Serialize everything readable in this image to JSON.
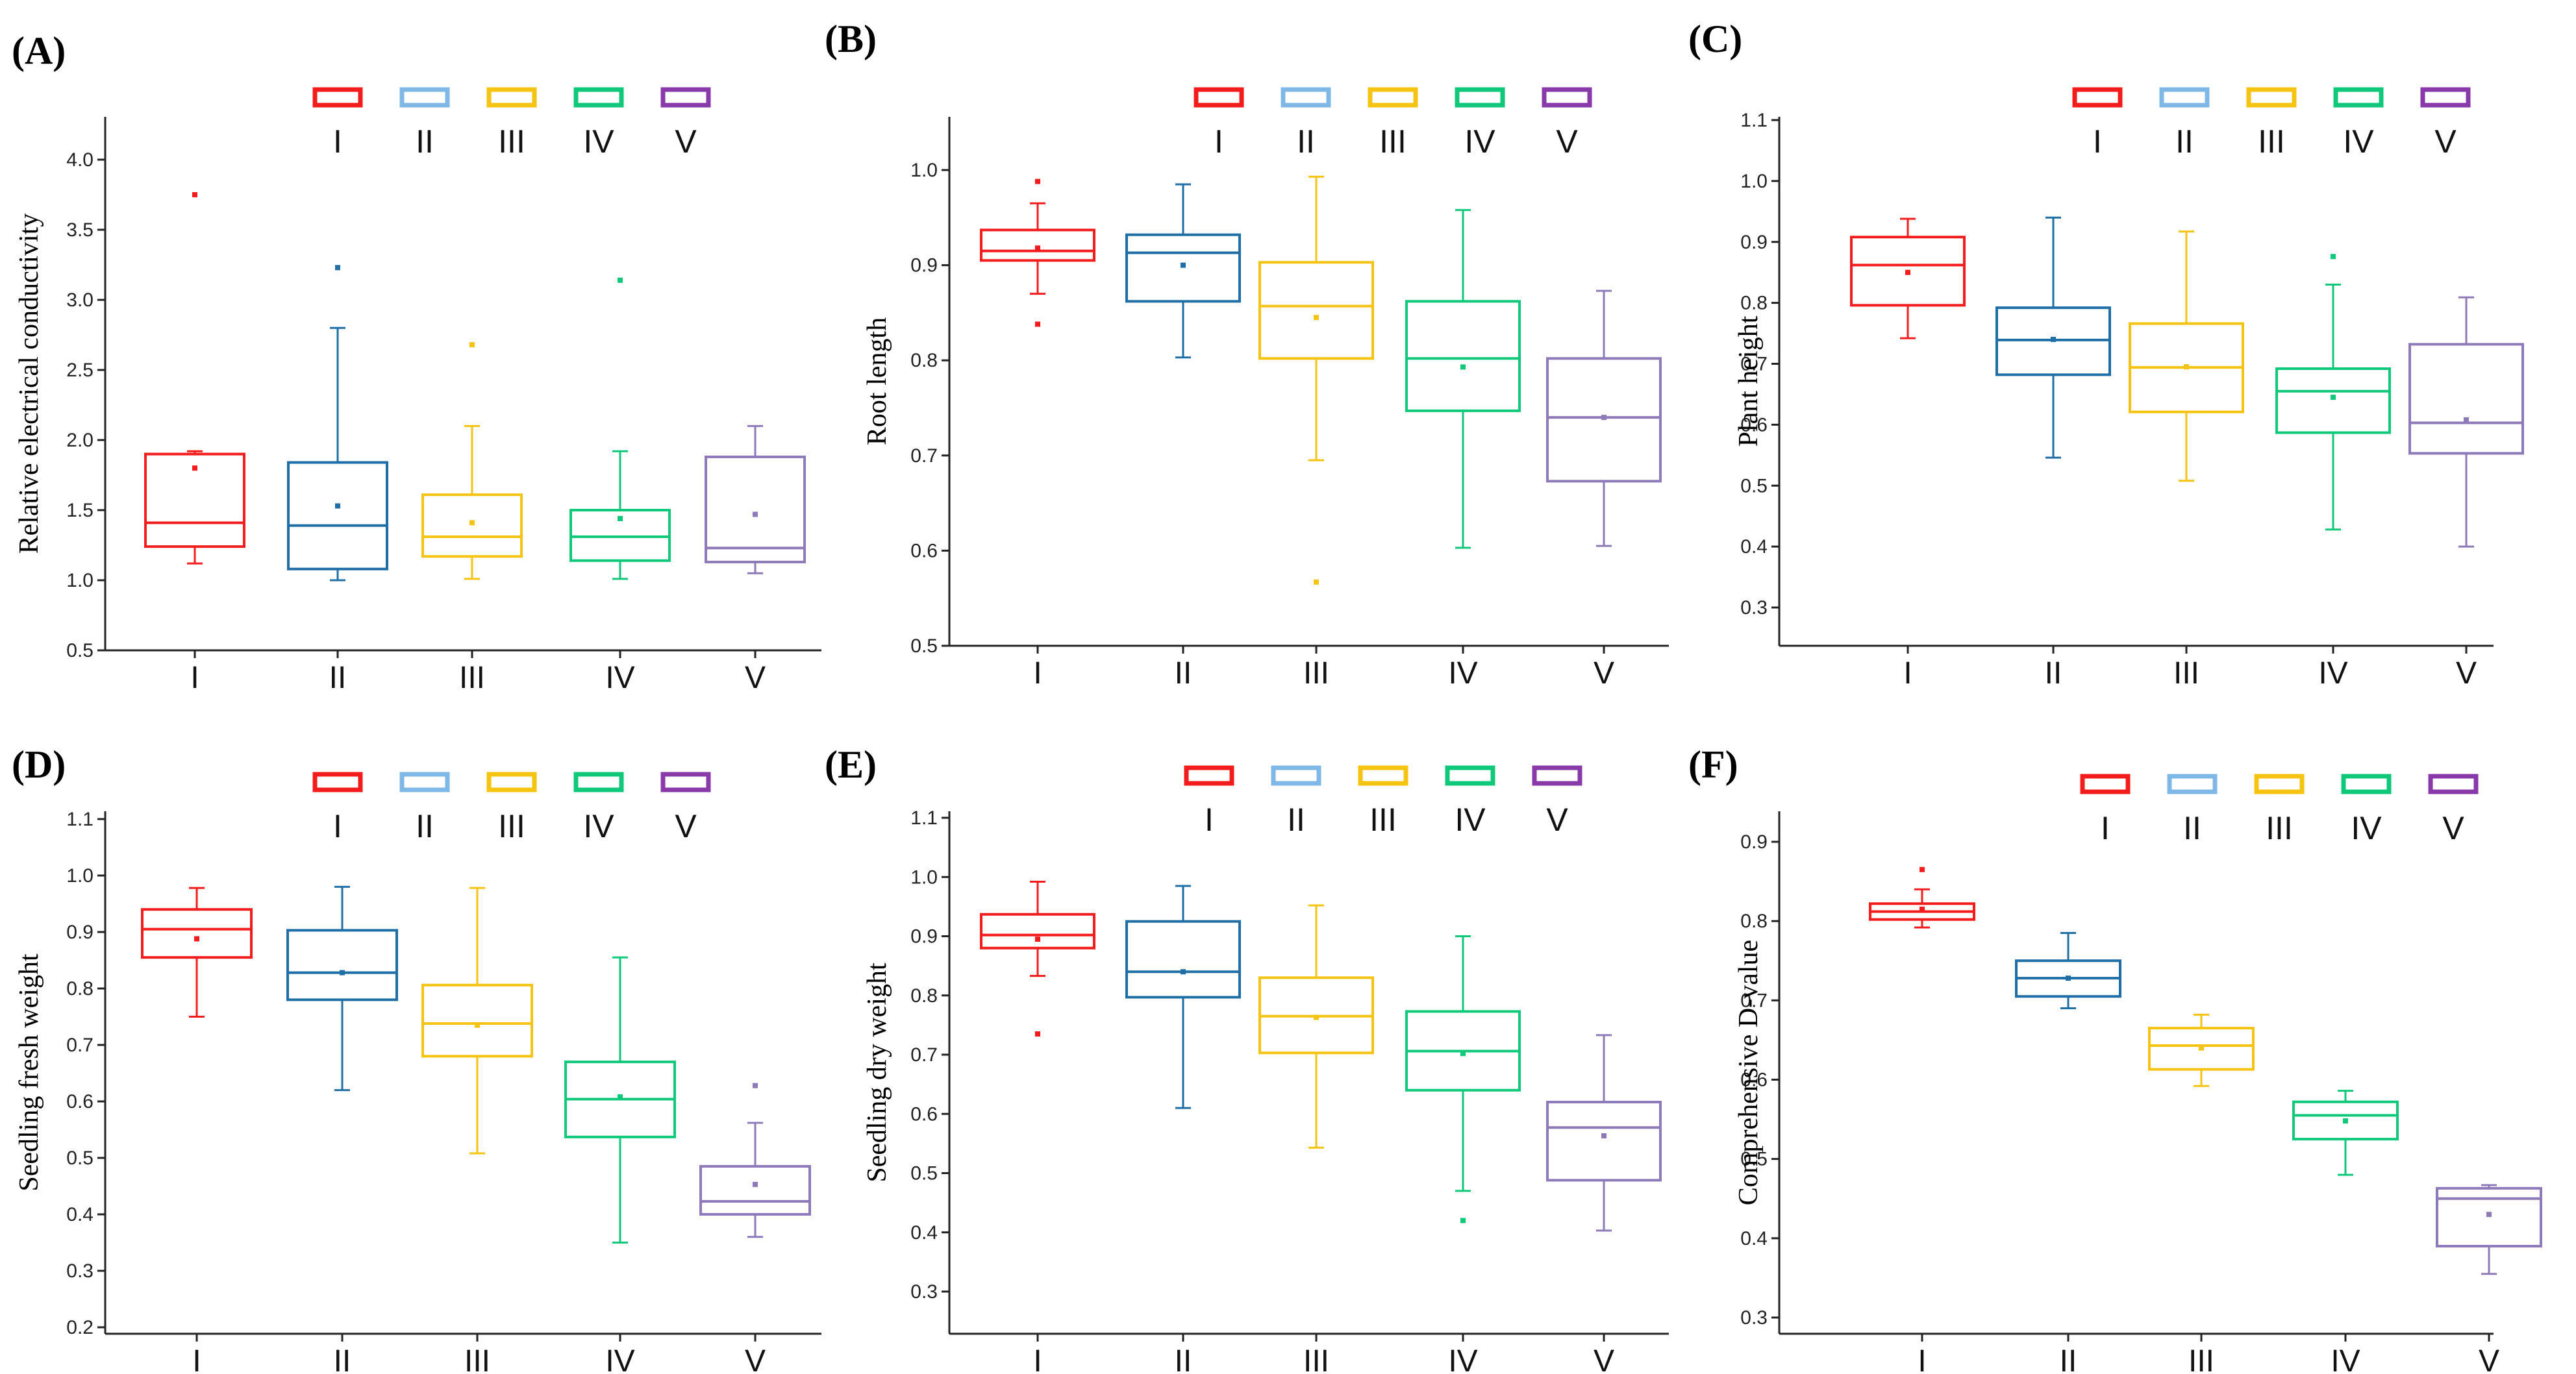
{
  "figure": {
    "groups": [
      "I",
      "II",
      "III",
      "IV",
      "V"
    ],
    "colors": [
      "#f21c1c",
      "#7fb8e6",
      "#f5c311",
      "#10c87a",
      "#8a3aa8"
    ],
    "box_colors": [
      "#f21c1c",
      "#1f6fa6",
      "#f5c311",
      "#10c87a",
      "#8e7ab8"
    ]
  },
  "chart_data": [
    {
      "type": "box",
      "panel": "(A)",
      "title": "",
      "xlabel": "",
      "ylabel": "Relative electrical conductivity",
      "categories": [
        "I",
        "II",
        "III",
        "IV",
        "V"
      ],
      "ylim": [
        0.5,
        4.25
      ],
      "yticks": [
        "0.5",
        "1.0",
        "1.5",
        "2.0",
        "2.5",
        "3.0",
        "3.5",
        "4.0"
      ],
      "series": [
        {
          "name": "I",
          "whisker_low": 1.12,
          "q1": 1.24,
          "median": 1.41,
          "q3": 1.9,
          "whisker_high": 1.92,
          "mean": 1.8,
          "outliers": [
            3.75
          ]
        },
        {
          "name": "II",
          "whisker_low": 1.0,
          "q1": 1.08,
          "median": 1.39,
          "q3": 1.84,
          "whisker_high": 2.8,
          "mean": 1.53,
          "outliers": [
            3.23
          ]
        },
        {
          "name": "III",
          "whisker_low": 1.01,
          "q1": 1.17,
          "median": 1.31,
          "q3": 1.61,
          "whisker_high": 2.1,
          "mean": 1.41,
          "outliers": [
            2.68
          ]
        },
        {
          "name": "IV",
          "whisker_low": 1.01,
          "q1": 1.14,
          "median": 1.31,
          "q3": 1.5,
          "whisker_high": 1.92,
          "mean": 1.44,
          "outliers": [
            3.14
          ]
        },
        {
          "name": "V",
          "whisker_low": 1.05,
          "q1": 1.13,
          "median": 1.23,
          "q3": 1.88,
          "whisker_high": 2.1,
          "mean": 1.47,
          "outliers": []
        }
      ]
    },
    {
      "type": "box",
      "panel": "(B)",
      "title": "",
      "xlabel": "",
      "ylabel": "Root length",
      "categories": [
        "I",
        "II",
        "III",
        "IV",
        "V"
      ],
      "ylim": [
        0.5,
        1.06
      ],
      "yticks": [
        "0.5",
        "0.6",
        "0.7",
        "0.8",
        "0.9",
        "1.0"
      ],
      "series": [
        {
          "name": "I",
          "whisker_low": 0.87,
          "q1": 0.905,
          "median": 0.915,
          "q3": 0.937,
          "whisker_high": 0.965,
          "mean": 0.918,
          "outliers": [
            0.838,
            0.988
          ]
        },
        {
          "name": "II",
          "whisker_low": 0.803,
          "q1": 0.862,
          "median": 0.913,
          "q3": 0.932,
          "whisker_high": 0.985,
          "mean": 0.9,
          "outliers": []
        },
        {
          "name": "III",
          "whisker_low": 0.695,
          "q1": 0.802,
          "median": 0.857,
          "q3": 0.903,
          "whisker_high": 0.993,
          "mean": 0.845,
          "outliers": [
            0.567
          ]
        },
        {
          "name": "IV",
          "whisker_low": 0.603,
          "q1": 0.747,
          "median": 0.802,
          "q3": 0.862,
          "whisker_high": 0.958,
          "mean": 0.793,
          "outliers": []
        },
        {
          "name": "V",
          "whisker_low": 0.605,
          "q1": 0.673,
          "median": 0.74,
          "q3": 0.802,
          "whisker_high": 0.873,
          "mean": 0.74,
          "outliers": []
        }
      ]
    },
    {
      "type": "box",
      "panel": "(C)",
      "title": "",
      "xlabel": "",
      "ylabel": "Plant height",
      "categories": [
        "I",
        "II",
        "III",
        "IV",
        "V"
      ],
      "ylim": [
        0.25,
        1.1
      ],
      "yticks": [
        "0.3",
        "0.4",
        "0.5",
        "0.6",
        "0.7",
        "0.8",
        "0.9",
        "1.0",
        "1.1"
      ],
      "series": [
        {
          "name": "I",
          "whisker_low": 0.742,
          "q1": 0.796,
          "median": 0.862,
          "q3": 0.908,
          "whisker_high": 0.938,
          "mean": 0.85,
          "outliers": []
        },
        {
          "name": "II",
          "whisker_low": 0.546,
          "q1": 0.682,
          "median": 0.739,
          "q3": 0.792,
          "whisker_high": 0.94,
          "mean": 0.74,
          "outliers": []
        },
        {
          "name": "III",
          "whisker_low": 0.508,
          "q1": 0.621,
          "median": 0.694,
          "q3": 0.766,
          "whisker_high": 0.917,
          "mean": 0.695,
          "outliers": []
        },
        {
          "name": "IV",
          "whisker_low": 0.428,
          "q1": 0.587,
          "median": 0.655,
          "q3": 0.692,
          "whisker_high": 0.83,
          "mean": 0.645,
          "outliers": [
            0.876
          ]
        },
        {
          "name": "V",
          "whisker_low": 0.4,
          "q1": 0.553,
          "median": 0.603,
          "q3": 0.732,
          "whisker_high": 0.809,
          "mean": 0.608,
          "outliers": []
        }
      ]
    },
    {
      "type": "box",
      "panel": "(D)",
      "title": "",
      "xlabel": "",
      "ylabel": "Seedling fresh weight",
      "categories": [
        "I",
        "II",
        "III",
        "IV",
        "V"
      ],
      "ylim": [
        0.2,
        1.1
      ],
      "yticks": [
        "0.2",
        "0.3",
        "0.4",
        "0.5",
        "0.6",
        "0.7",
        "0.8",
        "0.9",
        "1.0",
        "1.1"
      ],
      "series": [
        {
          "name": "I",
          "whisker_low": 0.75,
          "q1": 0.855,
          "median": 0.905,
          "q3": 0.94,
          "whisker_high": 0.978,
          "mean": 0.888,
          "outliers": []
        },
        {
          "name": "II",
          "whisker_low": 0.62,
          "q1": 0.78,
          "median": 0.828,
          "q3": 0.903,
          "whisker_high": 0.98,
          "mean": 0.828,
          "outliers": []
        },
        {
          "name": "III",
          "whisker_low": 0.508,
          "q1": 0.68,
          "median": 0.738,
          "q3": 0.806,
          "whisker_high": 0.978,
          "mean": 0.735,
          "outliers": []
        },
        {
          "name": "IV",
          "whisker_low": 0.35,
          "q1": 0.537,
          "median": 0.604,
          "q3": 0.67,
          "whisker_high": 0.855,
          "mean": 0.608,
          "outliers": []
        },
        {
          "name": "V",
          "whisker_low": 0.36,
          "q1": 0.4,
          "median": 0.423,
          "q3": 0.485,
          "whisker_high": 0.562,
          "mean": 0.453,
          "outliers": [
            0.628
          ]
        }
      ]
    },
    {
      "type": "box",
      "panel": "(E)",
      "title": "",
      "xlabel": "",
      "ylabel": "Seedling dry weight",
      "categories": [
        "I",
        "II",
        "III",
        "IV",
        "V"
      ],
      "ylim": [
        0.25,
        1.1
      ],
      "yticks": [
        "0.3",
        "0.4",
        "0.5",
        "0.6",
        "0.7",
        "0.8",
        "0.9",
        "1.0",
        "1.1"
      ],
      "series": [
        {
          "name": "I",
          "whisker_low": 0.833,
          "q1": 0.88,
          "median": 0.902,
          "q3": 0.937,
          "whisker_high": 0.992,
          "mean": 0.895,
          "outliers": [
            0.735
          ]
        },
        {
          "name": "II",
          "whisker_low": 0.61,
          "q1": 0.797,
          "median": 0.84,
          "q3": 0.925,
          "whisker_high": 0.985,
          "mean": 0.84,
          "outliers": []
        },
        {
          "name": "III",
          "whisker_low": 0.543,
          "q1": 0.703,
          "median": 0.765,
          "q3": 0.83,
          "whisker_high": 0.952,
          "mean": 0.763,
          "outliers": []
        },
        {
          "name": "IV",
          "whisker_low": 0.47,
          "q1": 0.64,
          "median": 0.706,
          "q3": 0.773,
          "whisker_high": 0.9,
          "mean": 0.702,
          "outliers": [
            0.42
          ]
        },
        {
          "name": "V",
          "whisker_low": 0.403,
          "q1": 0.488,
          "median": 0.577,
          "q3": 0.62,
          "whisker_high": 0.733,
          "mean": 0.563,
          "outliers": []
        }
      ]
    },
    {
      "type": "box",
      "panel": "(F)",
      "title": "",
      "xlabel": "",
      "ylabel": "Comprehensive D-value",
      "categories": [
        "I",
        "II",
        "III",
        "IV",
        "V"
      ],
      "ylim": [
        0.3,
        0.95
      ],
      "yticks": [
        "0.3",
        "0.4",
        "0.5",
        "0.6",
        "0.7",
        "0.8",
        "0.9"
      ],
      "series": [
        {
          "name": "I",
          "whisker_low": 0.792,
          "q1": 0.802,
          "median": 0.812,
          "q3": 0.822,
          "whisker_high": 0.84,
          "mean": 0.815,
          "outliers": [
            0.865
          ]
        },
        {
          "name": "II",
          "whisker_low": 0.69,
          "q1": 0.705,
          "median": 0.728,
          "q3": 0.75,
          "whisker_high": 0.785,
          "mean": 0.728,
          "outliers": []
        },
        {
          "name": "III",
          "whisker_low": 0.592,
          "q1": 0.613,
          "median": 0.643,
          "q3": 0.665,
          "whisker_high": 0.682,
          "mean": 0.64,
          "outliers": []
        },
        {
          "name": "IV",
          "whisker_low": 0.48,
          "q1": 0.525,
          "median": 0.555,
          "q3": 0.572,
          "whisker_high": 0.586,
          "mean": 0.548,
          "outliers": []
        },
        {
          "name": "V",
          "whisker_low": 0.355,
          "q1": 0.39,
          "median": 0.45,
          "q3": 0.463,
          "whisker_high": 0.467,
          "mean": 0.43,
          "outliers": []
        }
      ]
    }
  ]
}
